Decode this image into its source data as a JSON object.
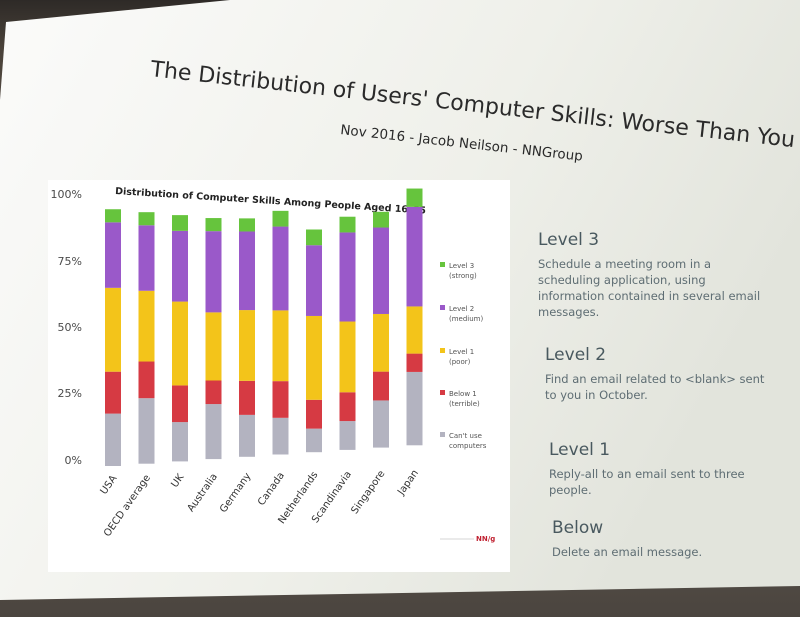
{
  "slide": {
    "title": "The Distribution of Users' Computer Skills: Worse Than You Think",
    "subtitle": "Nov 2016 - Jacob Neilson - NNGroup",
    "logo_text": "NN/g"
  },
  "levels": [
    {
      "heading": "Level 3",
      "description": "Schedule a meeting room in a scheduling application, using information contained in several email messages."
    },
    {
      "heading": "Level 2",
      "description": "Find an email related to <blank> sent to you in October."
    },
    {
      "heading": "Level 1",
      "description": "Reply-all to an email sent to three people."
    },
    {
      "heading": "Below",
      "description": "Delete an email message."
    }
  ],
  "chart_data": {
    "type": "bar",
    "stacked": true,
    "title": "Distribution of Computer Skills Among People Aged 16–65",
    "categories": [
      "USA",
      "OECD average",
      "UK",
      "Australia",
      "Germany",
      "Canada",
      "Netherlands",
      "Scandinavia",
      "Singapore",
      "Japan"
    ],
    "y_ticks": [
      "100%",
      "75%",
      "50%",
      "25%",
      "0%"
    ],
    "ylim": [
      0,
      100
    ],
    "series": [
      {
        "name": "Can't use computers",
        "label_lines": [
          "Can't use",
          "computers"
        ],
        "color": "#b3b3c0",
        "values": [
          20,
          25,
          15,
          21,
          16,
          14,
          9,
          11,
          18,
          28
        ]
      },
      {
        "name": "Below 1 (terrible)",
        "label_lines": [
          "Below 1",
          "(terrible)"
        ],
        "color": "#d63a43",
        "values": [
          16,
          14,
          14,
          9,
          13,
          14,
          11,
          11,
          11,
          7
        ]
      },
      {
        "name": "Level 1 (poor)",
        "label_lines": [
          "Level 1",
          "(poor)"
        ],
        "color": "#f3c41a",
        "values": [
          32,
          27,
          32,
          26,
          27,
          27,
          32,
          27,
          22,
          18
        ]
      },
      {
        "name": "Level 2 (medium)",
        "label_lines": [
          "Level 2",
          "(medium)"
        ],
        "color": "#9a59c9",
        "values": [
          25,
          25,
          27,
          31,
          30,
          32,
          27,
          34,
          33,
          38
        ]
      },
      {
        "name": "Level 3 (strong)",
        "label_lines": [
          "Level 3",
          "(strong)"
        ],
        "color": "#66c43d",
        "values": [
          5,
          5,
          6,
          5,
          5,
          6,
          6,
          6,
          6,
          7
        ]
      }
    ]
  }
}
